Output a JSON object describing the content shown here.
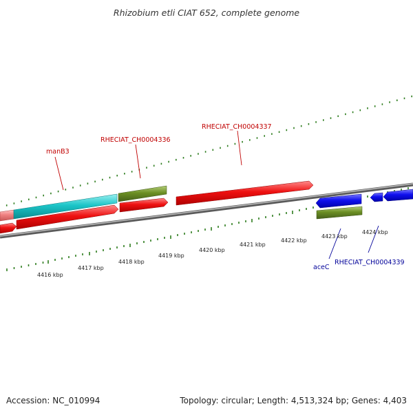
{
  "title": "Rhizobium etli CIAT 652, complete genome",
  "footer": {
    "accession": "Accession: NC_010994",
    "summary": "Topology: circular; Length: 4,513,324 bp; Genes: 4,403"
  },
  "colors": {
    "backbone": "#808080",
    "ticks": "#2e7d1e",
    "red_gene": "#ee1111",
    "cyan_gene": "#1cc5c8",
    "olive_gene": "#6b8e23",
    "pink_gene": "#ef8080",
    "blue_gene": "#1010ee",
    "forward_label": "#c00000",
    "reverse_label": "#000099"
  },
  "scale_labels": [
    {
      "label": "4416 kbp",
      "kbp": 4416
    },
    {
      "label": "4417 kbp",
      "kbp": 4417
    },
    {
      "label": "4418 kbp",
      "kbp": 4418
    },
    {
      "label": "4419 kbp",
      "kbp": 4419
    },
    {
      "label": "4420 kbp",
      "kbp": 4420
    },
    {
      "label": "4421 kbp",
      "kbp": 4421
    },
    {
      "label": "4422 kbp",
      "kbp": 4422
    },
    {
      "label": "4423 kbp",
      "kbp": 4423
    },
    {
      "label": "4424 kbp",
      "kbp": 4424
    }
  ],
  "gene_labels": [
    {
      "text": "manB3",
      "strand": "forward"
    },
    {
      "text": "RHECIAT_CH0004336",
      "strand": "forward"
    },
    {
      "text": "RHECIAT_CH0004337",
      "strand": "forward"
    },
    {
      "text": "aceC",
      "strand": "reverse"
    },
    {
      "text": "RHECIAT_CH0004339",
      "strand": "reverse"
    }
  ]
}
